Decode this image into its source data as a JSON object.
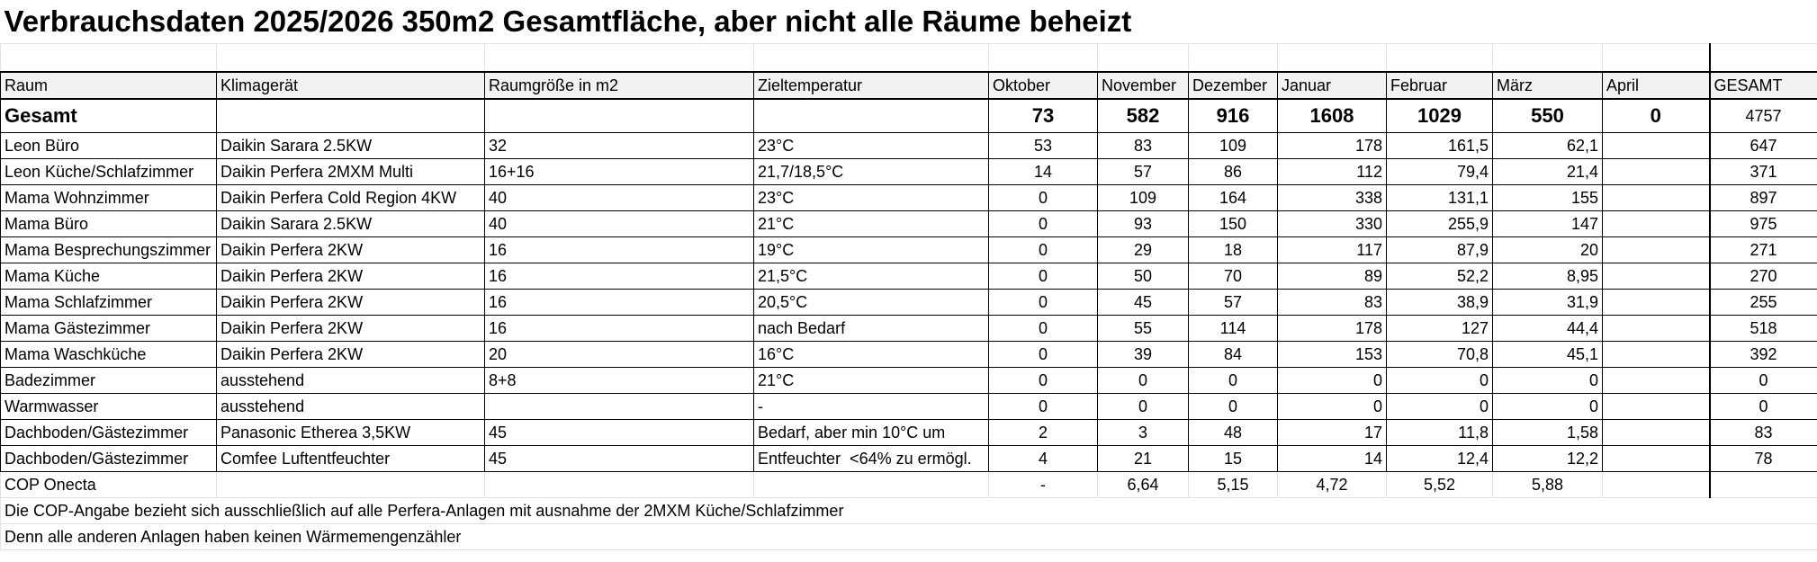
{
  "title": "Verbrauchsdaten 2025/2026 350m2 Gesamtfläche, aber nicht alle Räume beheizt",
  "table": {
    "header": [
      "Raum",
      "Klimagerät",
      "Raumgröße in m2",
      "Zieltemperatur",
      "Oktober",
      "November",
      "Dezember",
      "Januar",
      "Februar",
      "März",
      "April",
      "GESAMT"
    ],
    "total": [
      "Gesamt",
      null,
      null,
      null,
      "73",
      "582",
      "916",
      "1608",
      "1029",
      "550",
      "0",
      "4757"
    ],
    "rows": [
      [
        "Leon Büro",
        "Daikin Sarara 2.5KW",
        "32",
        "23°C",
        "53",
        "83",
        "109",
        "178",
        "161,5",
        "62,1",
        null,
        "647"
      ],
      [
        "Leon Küche/Schlafzimmer",
        "Daikin Perfera 2MXM Multi",
        "16+16",
        "21,7/18,5°C",
        "14",
        "57",
        "86",
        "112",
        "79,4",
        "21,4",
        null,
        "371"
      ],
      [
        "Mama Wohnzimmer",
        "Daikin Perfera Cold Region 4KW",
        "40",
        "23°C",
        "0",
        "109",
        "164",
        "338",
        "131,1",
        "155",
        null,
        "897"
      ],
      [
        "Mama Büro",
        "Daikin Sarara 2.5KW",
        "40",
        "21°C",
        "0",
        "93",
        "150",
        "330",
        "255,9",
        "147",
        null,
        "975"
      ],
      [
        "Mama Besprechungszimmer",
        "Daikin Perfera 2KW",
        "16",
        "19°C",
        "0",
        "29",
        "18",
        "117",
        "87,9",
        "20",
        null,
        "271"
      ],
      [
        "Mama Küche",
        "Daikin Perfera 2KW",
        "16",
        "21,5°C",
        "0",
        "50",
        "70",
        "89",
        "52,2",
        "8,95",
        null,
        "270"
      ],
      [
        "Mama Schlafzimmer",
        "Daikin Perfera 2KW",
        "16",
        "20,5°C",
        "0",
        "45",
        "57",
        "83",
        "38,9",
        "31,9",
        null,
        "255"
      ],
      [
        "Mama Gästezimmer",
        "Daikin Perfera 2KW",
        "16",
        "nach Bedarf",
        "0",
        "55",
        "114",
        "178",
        "127",
        "44,4",
        null,
        "518"
      ],
      [
        "Mama Waschküche",
        "Daikin Perfera 2KW",
        "20",
        "16°C",
        "0",
        "39",
        "84",
        "153",
        "70,8",
        "45,1",
        null,
        "392"
      ],
      [
        "Badezimmer",
        "ausstehend",
        "8+8",
        "21°C",
        "0",
        "0",
        "0",
        "0",
        "0",
        "0",
        null,
        "0"
      ],
      [
        "Warmwasser",
        "ausstehend",
        null,
        "-",
        "0",
        "0",
        "0",
        "0",
        "0",
        "0",
        null,
        "0"
      ],
      [
        "Dachboden/Gästezimmer",
        "Panasonic Etherea 3,5KW",
        "45",
        "Bedarf, aber min 10°C um",
        "2",
        "3",
        "48",
        "17",
        "11,8",
        "1,58",
        null,
        "83"
      ],
      [
        "Dachboden/Gästezimmer",
        "Comfee Luftentfeuchter",
        "45",
        "Entfeuchter  <64% zu ermögl.",
        "4",
        "21",
        "15",
        "14",
        "12,4",
        "12,2",
        null,
        "78"
      ]
    ],
    "cop": [
      "COP Onecta",
      null,
      null,
      null,
      "-",
      "6,64",
      "5,15",
      "4,72",
      "5,52",
      "5,88",
      null,
      null
    ]
  },
  "notes": [
    "Die COP-Angabe bezieht sich ausschließlich auf alle Perfera-Anlagen mit ausnahme der 2MXM Küche/Schlafzimmer",
    "Denn alle anderen Anlagen haben keinen Wärmemengenzähler"
  ]
}
